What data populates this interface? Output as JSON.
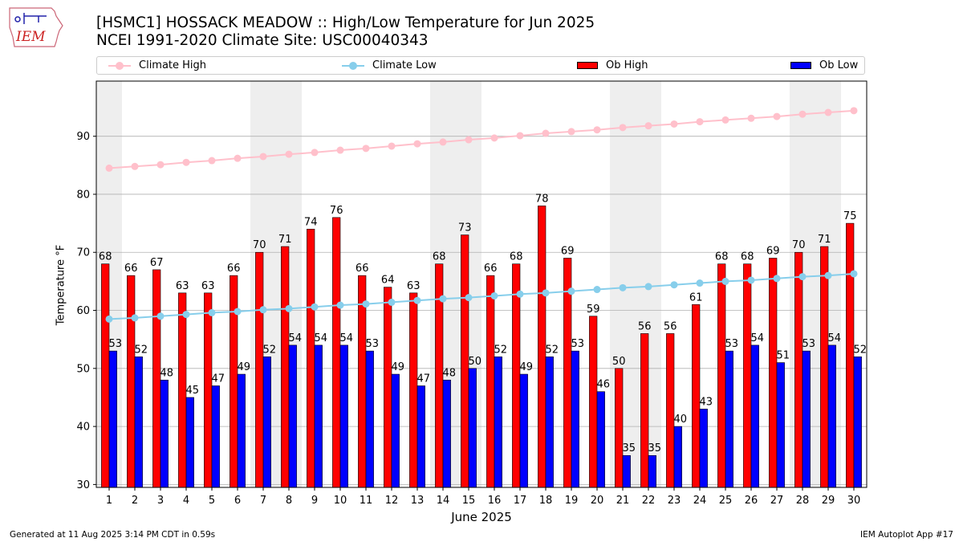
{
  "header": {
    "title_line1": "[HSMC1] HOSSACK MEADOW :: High/Low Temperature for Jun 2025",
    "title_line2": "NCEI 1991-2020 Climate Site: USC00040343",
    "logo_text": "IEM"
  },
  "footer": {
    "generated": "Generated at 11 Aug 2025 3:14 PM CDT in 0.59s",
    "app": "IEM Autoplot App #17"
  },
  "colors": {
    "climate_high": "#ffc0cb",
    "climate_low": "#87ceeb",
    "ob_high": "#ff0000",
    "ob_low": "#0000ff",
    "weekend_band": "#eeeeee",
    "grid": "#b0b0b0"
  },
  "chart_data": {
    "type": "bar",
    "xlabel": "June 2025",
    "ylabel": "Temperature °F",
    "ylim": [
      29.5,
      99.5
    ],
    "yticks": [
      30,
      40,
      50,
      60,
      70,
      80,
      90
    ],
    "grid": "horizontal",
    "legend": "top",
    "categories": [
      "1",
      "2",
      "3",
      "4",
      "5",
      "6",
      "7",
      "8",
      "9",
      "10",
      "11",
      "12",
      "13",
      "14",
      "15",
      "16",
      "17",
      "18",
      "19",
      "20",
      "21",
      "22",
      "23",
      "24",
      "25",
      "26",
      "27",
      "28",
      "29",
      "30"
    ],
    "weekend_days": [
      1,
      7,
      8,
      14,
      15,
      21,
      22,
      28,
      29
    ],
    "series": [
      {
        "name": "Climate High",
        "kind": "line",
        "values": [
          84.5,
          84.8,
          85.1,
          85.5,
          85.8,
          86.2,
          86.5,
          86.9,
          87.2,
          87.6,
          87.9,
          88.3,
          88.7,
          89.0,
          89.4,
          89.7,
          90.1,
          90.5,
          90.8,
          91.1,
          91.5,
          91.8,
          92.1,
          92.5,
          92.8,
          93.1,
          93.4,
          93.8,
          94.1,
          94.4
        ]
      },
      {
        "name": "Climate Low",
        "kind": "line",
        "values": [
          58.5,
          58.7,
          59.0,
          59.3,
          59.6,
          59.8,
          60.1,
          60.3,
          60.6,
          60.9,
          61.1,
          61.4,
          61.7,
          62.0,
          62.2,
          62.5,
          62.8,
          63.0,
          63.3,
          63.6,
          63.9,
          64.1,
          64.4,
          64.7,
          65.0,
          65.2,
          65.5,
          65.8,
          66.0,
          66.3
        ]
      },
      {
        "name": "Ob High",
        "kind": "bar",
        "values": [
          68,
          66,
          67,
          63,
          63,
          66,
          70,
          71,
          74,
          76,
          66,
          64,
          63,
          68,
          73,
          66,
          68,
          78,
          69,
          59,
          50,
          56,
          56,
          61,
          68,
          68,
          69,
          70,
          71,
          75
        ]
      },
      {
        "name": "Ob Low",
        "kind": "bar",
        "values": [
          53,
          52,
          48,
          45,
          47,
          49,
          52,
          54,
          54,
          54,
          53,
          49,
          47,
          48,
          50,
          52,
          49,
          52,
          53,
          46,
          35,
          35,
          40,
          43,
          53,
          54,
          51,
          53,
          54,
          52
        ]
      }
    ]
  }
}
